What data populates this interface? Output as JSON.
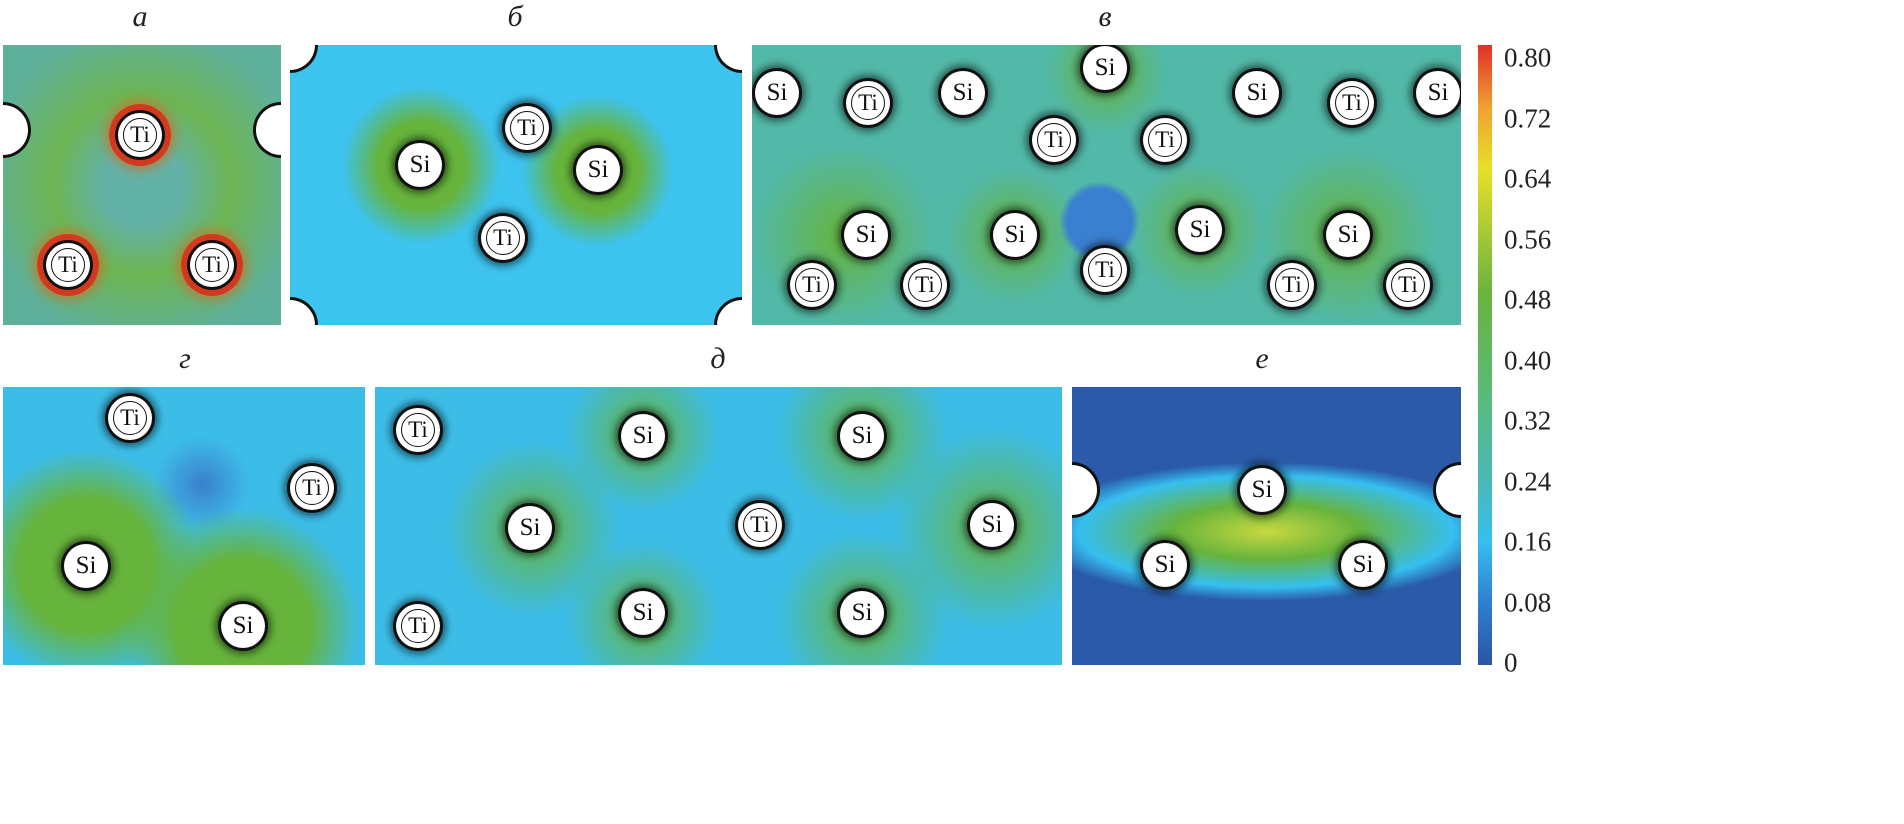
{
  "panels": [
    {
      "label": "а",
      "atoms": [
        "Ti",
        "Ti",
        "Ti"
      ]
    },
    {
      "label": "б",
      "atoms": [
        "Ti",
        "Si",
        "Si",
        "Ti"
      ]
    },
    {
      "label": "в",
      "atoms": [
        "Si",
        "Si",
        "Ti",
        "Si",
        "Si",
        "Ti",
        "Si",
        "Ti",
        "Ti",
        "Si",
        "Si",
        "Si",
        "Si",
        "Ti",
        "Ti",
        "Ti",
        "Ti",
        "Ti"
      ]
    },
    {
      "label": "г",
      "atoms": [
        "Ti",
        "Ti",
        "Si",
        "Si"
      ]
    },
    {
      "label": "д",
      "atoms": [
        "Ti",
        "Si",
        "Si",
        "Si",
        "Ti",
        "Si",
        "Ti",
        "Si",
        "Si"
      ]
    },
    {
      "label": "е",
      "atoms": [
        "Si",
        "Si",
        "Si"
      ]
    }
  ],
  "colorbar": {
    "ticks": [
      "0.80",
      "0.72",
      "0.64",
      "0.56",
      "0.48",
      "0.40",
      "0.32",
      "0.24",
      "0.16",
      "0.08",
      "0"
    ],
    "range": [
      0,
      0.8
    ],
    "colors": [
      "#2a55a5",
      "#2f7fd0",
      "#36bff0",
      "#4bb8b5",
      "#6ab33e",
      "#e8e028",
      "#e0302a"
    ]
  }
}
